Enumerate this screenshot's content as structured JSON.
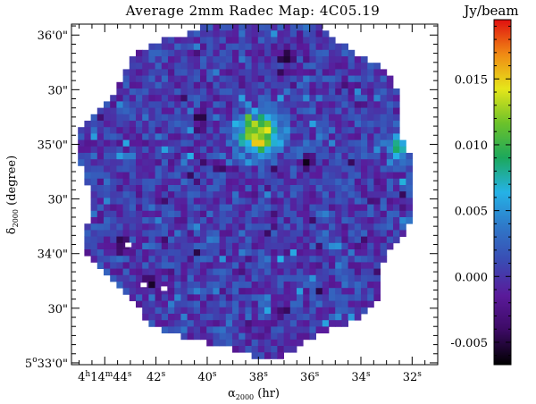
{
  "chart_data": {
    "type": "heatmap",
    "title": "Average 2mm Radec Map: 4C05.19",
    "xlabel": "α2000 (hr)",
    "ylabel": "δ2000 (degree)",
    "x_ticks": [
      "4h14m44s",
      "42s",
      "40s",
      "38s",
      "36s",
      "34s",
      "32s"
    ],
    "x_tick_values_sec": [
      44,
      42,
      40,
      38,
      36,
      34,
      32
    ],
    "xlim_sec": [
      45.3,
      31.0
    ],
    "y_ticks": [
      "5°33'0\"",
      "30\"",
      "34'0\"",
      "30\"",
      "35'0\"",
      "30\"",
      "36'0\""
    ],
    "y_tick_values_arcsec": [
      0,
      30,
      60,
      90,
      120,
      150,
      180
    ],
    "ylim_arcsec": [
      -1,
      186
    ],
    "colorbar": {
      "label": "Jy/beam",
      "ticks": [
        "-0.005",
        "0.000",
        "0.005",
        "0.010",
        "0.015"
      ],
      "tick_values": [
        -0.005,
        0.0,
        0.005,
        0.01,
        0.015
      ],
      "range": [
        -0.0067,
        0.0195
      ],
      "colormap": [
        "#000000",
        "#3c0a64",
        "#5a1a9a",
        "#3a4bb3",
        "#2f78c8",
        "#25b2e6",
        "#1ca85c",
        "#6cc22a",
        "#e6e61a",
        "#f08a14",
        "#e01010"
      ]
    },
    "map_background": "#3a55b4",
    "source": {
      "ra_sec": 37.95,
      "dec_arcsec": 126,
      "peak_jy_per_beam": 0.0142
    },
    "features": [
      {
        "kind": "bright-ridge",
        "ra_sec": 32.2,
        "dec_arcsec": 127,
        "value": 0.009
      },
      {
        "kind": "bright-ridge",
        "ra_sec": 32.6,
        "dec_arcsec": 118,
        "value": 0.009
      },
      {
        "kind": "dark-hole",
        "ra_sec": 36.1,
        "dec_arcsec": 110,
        "value": -0.0062
      },
      {
        "kind": "dark-hole",
        "ra_sec": 40.3,
        "dec_arcsec": 134,
        "value": -0.006
      },
      {
        "kind": "dark-hole",
        "ra_sec": 36.9,
        "dec_arcsec": 168,
        "value": -0.0058
      },
      {
        "kind": "dark-hole",
        "ra_sec": 43.3,
        "dec_arcsec": 66,
        "value": -0.0065
      },
      {
        "kind": "dark-hole",
        "ra_sec": 42.2,
        "dec_arcsec": 44,
        "value": -0.0065
      }
    ]
  }
}
